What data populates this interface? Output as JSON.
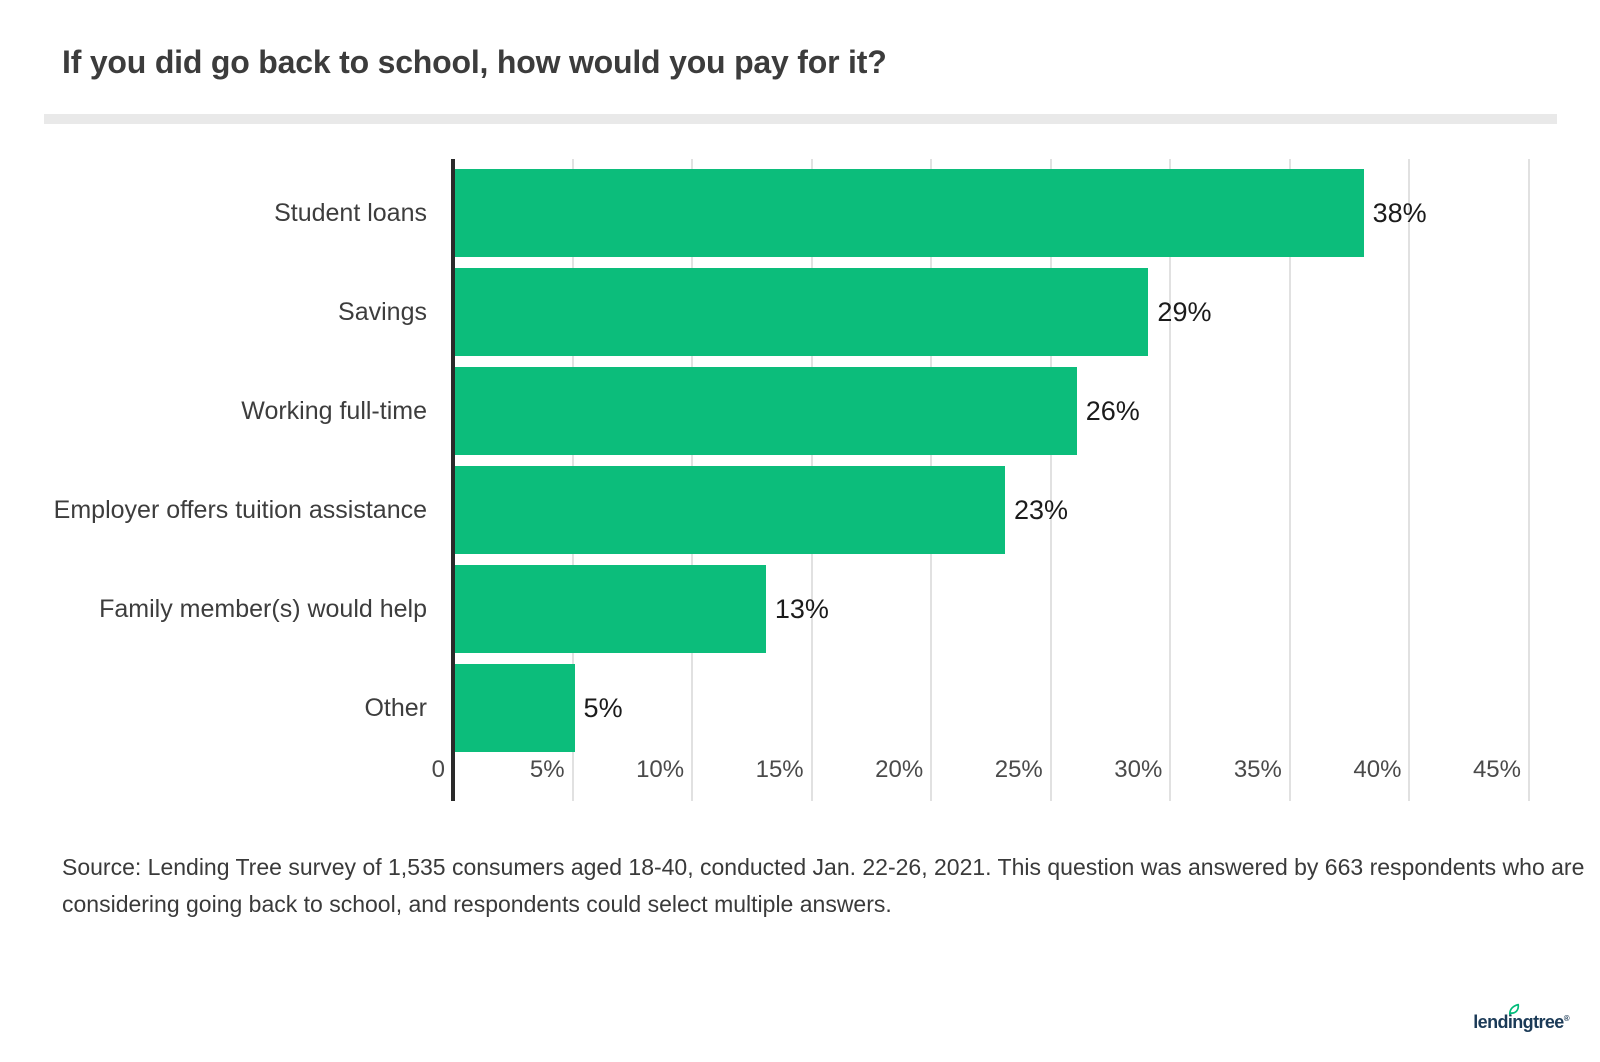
{
  "page": {
    "title": "If you did go back to school, how would you pay for it?",
    "source_lines": [
      "Source: Lending Tree survey of 1,535 consumers aged 18-40, conducted Jan. 22-26, 2021. This question was answered by 663 respondents who are",
      "considering going back to school, and respondents could select multiple answers."
    ]
  },
  "chart_data": {
    "type": "bar",
    "orientation": "horizontal",
    "title": "If you did go back to school, how would you pay for it?",
    "categories": [
      "Student loans",
      "Savings",
      "Working full-time",
      "Employer offers tuition assistance",
      "Family member(s) would help",
      "Other"
    ],
    "values": [
      38,
      29,
      26,
      23,
      13,
      5
    ],
    "value_labels": [
      "38%",
      "29%",
      "26%",
      "23%",
      "13%",
      "5%"
    ],
    "x_ticks": [
      "0",
      "5%",
      "10%",
      "15%",
      "20%",
      "25%",
      "30%",
      "35%",
      "40%",
      "45%"
    ],
    "x_tick_values": [
      0,
      5,
      10,
      15,
      20,
      25,
      30,
      35,
      40,
      45
    ],
    "xlim": [
      0,
      45
    ],
    "xlabel": "",
    "ylabel": "",
    "grid": true,
    "legend": "none",
    "bar_color": "#0cbd7b",
    "gridline_color": "#e1e1e1",
    "axis_color": "#2a2a2a"
  },
  "branding": {
    "logo_text": "lendingtree",
    "registered_mark": "®",
    "logo_text_color": "#1b3a57",
    "leaf_color": "#00bb7a"
  }
}
